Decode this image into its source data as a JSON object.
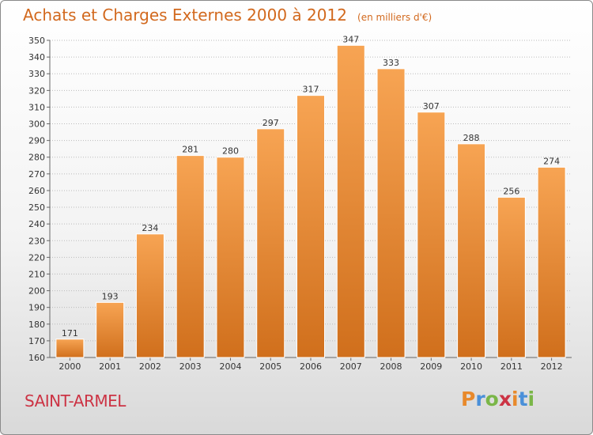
{
  "header": {
    "title": "Achats et Charges Externes 2000 à 2012",
    "subtitle": "(en milliers d'€)"
  },
  "footer": {
    "commune": "SAINT-ARMEL",
    "logo_text": "Proxiti",
    "logo_colors": [
      "#e8892b",
      "#4a90d9",
      "#7ab648",
      "#cc3344",
      "#e8892b",
      "#4a90d9",
      "#7ab648"
    ]
  },
  "colors": {
    "bar_light": "#f7a453",
    "bar_dark": "#d06f1c",
    "title": "#d2691e",
    "grid": "#bbbbbb",
    "commune": "#cc3344"
  },
  "chart_data": {
    "type": "bar",
    "title": "Achats et Charges Externes 2000 à 2012",
    "subtitle": "(en milliers d'€)",
    "categories": [
      "2000",
      "2001",
      "2002",
      "2003",
      "2004",
      "2005",
      "2006",
      "2007",
      "2008",
      "2009",
      "2010",
      "2011",
      "2012"
    ],
    "values": [
      171,
      193,
      234,
      281,
      280,
      297,
      317,
      347,
      333,
      307,
      288,
      256,
      274
    ],
    "ylim": [
      160,
      350
    ],
    "yticks": [
      160,
      170,
      180,
      190,
      200,
      210,
      220,
      230,
      240,
      250,
      260,
      270,
      280,
      290,
      300,
      310,
      320,
      330,
      340,
      350
    ],
    "grid": true,
    "data_labels": true
  }
}
